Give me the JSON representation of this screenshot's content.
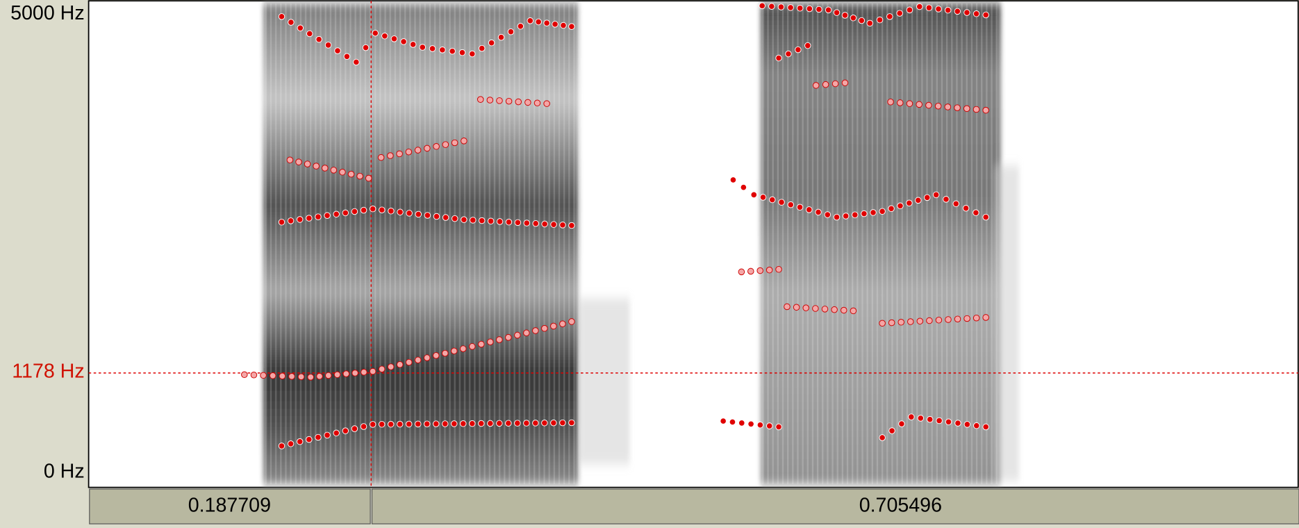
{
  "axis": {
    "top": "5000 Hz",
    "cursor": "1178 Hz",
    "bottom": "0 Hz"
  },
  "selection": {
    "before": "0.187709",
    "after": "0.705496"
  }
}
